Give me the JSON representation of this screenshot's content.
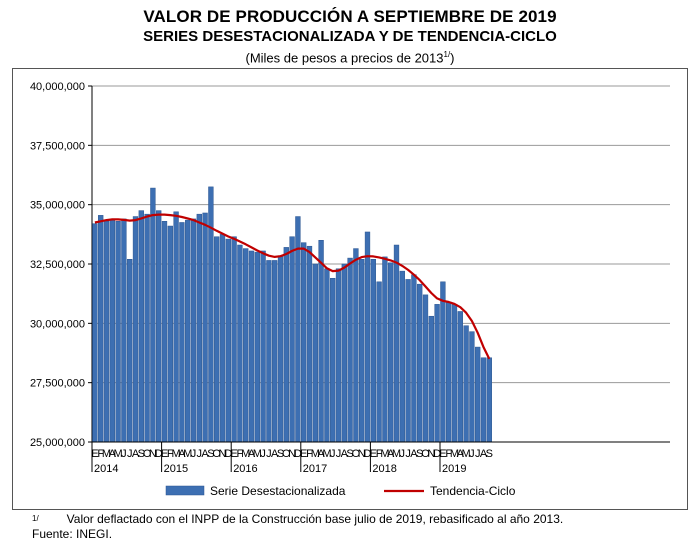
{
  "title_line1": "Valor de producción a septiembre de 2019",
  "title_line2": "Series desestacionalizada y de tendencia-ciclo",
  "subtitle_main": "(Miles de pesos a precios de 2013",
  "subtitle_sup": "1/",
  "subtitle_close": ")",
  "footnote_marker": "1/",
  "footnote_text": "Valor deflactado con el INPP de la Construcción base julio de 2019, rebasificado al año 2013.",
  "source": "Fuente: INEGI.",
  "colors": {
    "bar": "#3D6FB2",
    "bar_edge": "#2A5490",
    "trend": "#C00000"
  },
  "chart_data": {
    "type": "bar",
    "title": "Valor de producción a septiembre de 2019",
    "ylim": [
      25000000,
      40000000
    ],
    "y_ticks": [
      "25,000,000",
      "27,500,000",
      "30,000,000",
      "32,500,000",
      "35,000,000",
      "37,500,000",
      "40,000,000"
    ],
    "y_tick_values": [
      25000000,
      27500000,
      30000000,
      32500000,
      35000000,
      37500000,
      40000000
    ],
    "month_labels": [
      "E",
      "F",
      "M",
      "A",
      "M",
      "J",
      "J",
      "A",
      "S",
      "O",
      "N",
      "D"
    ],
    "years": [
      "2014",
      "2015",
      "2016",
      "2017",
      "2018",
      "2019"
    ],
    "legend": [
      "Serie Desestacionalizada",
      "Tendencia-Ciclo"
    ],
    "legend_position": "bottom",
    "series": [
      {
        "name": "Serie Desestacionalizada",
        "kind": "bar",
        "values": [
          34200000,
          34550000,
          34300000,
          34350000,
          34300000,
          34400000,
          32700000,
          34500000,
          34750000,
          34600000,
          35700000,
          34750000,
          34300000,
          34100000,
          34700000,
          34250000,
          34350000,
          34400000,
          34600000,
          34650000,
          35750000,
          33650000,
          33750000,
          33550000,
          33650000,
          33300000,
          33150000,
          33050000,
          33000000,
          33050000,
          32650000,
          32650000,
          32850000,
          33200000,
          33650000,
          34500000,
          33400000,
          33250000,
          32500000,
          33500000,
          32300000,
          31900000,
          32300000,
          32500000,
          32750000,
          33150000,
          32700000,
          33850000,
          32700000,
          31750000,
          32800000,
          32550000,
          33300000,
          32200000,
          31850000,
          32050000,
          31650000,
          31200000,
          30300000,
          30800000,
          31750000,
          30900000,
          30800000,
          30500000,
          29900000,
          29650000,
          29000000,
          28550000,
          28550000
        ]
      },
      {
        "name": "Tendencia-Ciclo",
        "kind": "line",
        "values": [
          34250000,
          34300000,
          34350000,
          34380000,
          34380000,
          34360000,
          34330000,
          34350000,
          34420000,
          34500000,
          34560000,
          34580000,
          34580000,
          34560000,
          34530000,
          34480000,
          34420000,
          34350000,
          34250000,
          34150000,
          34030000,
          33900000,
          33780000,
          33660000,
          33560000,
          33450000,
          33330000,
          33200000,
          33070000,
          32950000,
          32850000,
          32800000,
          32830000,
          32920000,
          33050000,
          33150000,
          33150000,
          33000000,
          32780000,
          32550000,
          32320000,
          32200000,
          32220000,
          32350000,
          32520000,
          32680000,
          32790000,
          32830000,
          32820000,
          32780000,
          32720000,
          32650000,
          32560000,
          32420000,
          32250000,
          32050000,
          31820000,
          31550000,
          31280000,
          31050000,
          30950000,
          30900000,
          30820000,
          30680000,
          30450000,
          30100000,
          29600000,
          29000000,
          28500000
        ]
      }
    ]
  }
}
